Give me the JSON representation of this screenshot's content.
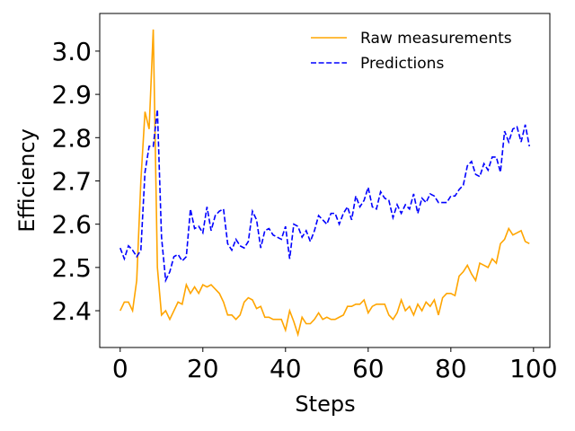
{
  "chart_data": {
    "type": "line",
    "xlabel": "Steps",
    "ylabel": "Efficiency",
    "x": [
      0,
      1,
      2,
      3,
      4,
      5,
      6,
      7,
      8,
      9,
      10,
      11,
      12,
      13,
      14,
      15,
      16,
      17,
      18,
      19,
      20,
      21,
      22,
      23,
      24,
      25,
      26,
      27,
      28,
      29,
      30,
      31,
      32,
      33,
      34,
      35,
      36,
      37,
      38,
      39,
      40,
      41,
      42,
      43,
      44,
      45,
      46,
      47,
      48,
      49,
      50,
      51,
      52,
      53,
      54,
      55,
      56,
      57,
      58,
      59,
      60,
      61,
      62,
      63,
      64,
      65,
      66,
      67,
      68,
      69,
      70,
      71,
      72,
      73,
      74,
      75,
      76,
      77,
      78,
      79,
      80,
      81,
      82,
      83,
      84,
      85,
      86,
      87,
      88,
      89,
      90,
      91,
      92,
      93,
      94,
      95,
      96,
      97,
      98,
      99
    ],
    "series": [
      {
        "name": "Raw measurements",
        "color": "orange",
        "dash": "solid",
        "values": [
          2.4,
          2.42,
          2.42,
          2.4,
          2.47,
          2.7,
          2.86,
          2.82,
          3.05,
          2.5,
          2.39,
          2.4,
          2.38,
          2.4,
          2.42,
          2.415,
          2.46,
          2.44,
          2.455,
          2.44,
          2.46,
          2.455,
          2.46,
          2.45,
          2.44,
          2.42,
          2.39,
          2.39,
          2.38,
          2.39,
          2.42,
          2.43,
          2.425,
          2.405,
          2.41,
          2.385,
          2.385,
          2.38,
          2.38,
          2.38,
          2.355,
          2.4,
          2.375,
          2.345,
          2.385,
          2.37,
          2.37,
          2.38,
          2.395,
          2.38,
          2.385,
          2.38,
          2.38,
          2.385,
          2.39,
          2.41,
          2.41,
          2.415,
          2.415,
          2.425,
          2.395,
          2.41,
          2.415,
          2.415,
          2.415,
          2.39,
          2.38,
          2.395,
          2.425,
          2.4,
          2.41,
          2.39,
          2.415,
          2.4,
          2.42,
          2.41,
          2.425,
          2.39,
          2.43,
          2.44,
          2.44,
          2.435,
          2.48,
          2.49,
          2.505,
          2.485,
          2.47,
          2.51,
          2.505,
          2.5,
          2.52,
          2.51,
          2.555,
          2.565,
          2.59,
          2.575,
          2.58,
          2.585,
          2.56,
          2.555
        ]
      },
      {
        "name": "Predictions",
        "color": "blue",
        "dash": "dashed",
        "values": [
          2.545,
          2.52,
          2.55,
          2.54,
          2.525,
          2.54,
          2.72,
          2.78,
          2.78,
          2.865,
          2.57,
          2.47,
          2.49,
          2.525,
          2.53,
          2.515,
          2.525,
          2.635,
          2.59,
          2.595,
          2.58,
          2.64,
          2.585,
          2.62,
          2.63,
          2.635,
          2.555,
          2.54,
          2.565,
          2.55,
          2.545,
          2.56,
          2.63,
          2.61,
          2.545,
          2.585,
          2.59,
          2.575,
          2.57,
          2.565,
          2.595,
          2.52,
          2.6,
          2.595,
          2.57,
          2.585,
          2.56,
          2.585,
          2.62,
          2.61,
          2.6,
          2.625,
          2.625,
          2.6,
          2.625,
          2.64,
          2.61,
          2.665,
          2.64,
          2.655,
          2.685,
          2.64,
          2.635,
          2.675,
          2.66,
          2.655,
          2.615,
          2.645,
          2.625,
          2.645,
          2.635,
          2.67,
          2.625,
          2.66,
          2.65,
          2.67,
          2.665,
          2.65,
          2.65,
          2.65,
          2.665,
          2.665,
          2.68,
          2.69,
          2.735,
          2.745,
          2.715,
          2.71,
          2.74,
          2.725,
          2.755,
          2.755,
          2.72,
          2.815,
          2.79,
          2.82,
          2.825,
          2.79,
          2.83,
          2.78
        ]
      }
    ],
    "xlim": [
      -4.95,
      103.95
    ],
    "ylim": [
      2.315,
      3.087
    ],
    "xticks": [
      0,
      20,
      40,
      60,
      80,
      100
    ],
    "yticks": [
      2.4,
      2.5,
      2.6,
      2.7,
      2.8,
      2.9,
      {
        "value": 3,
        "label": "3.0"
      }
    ],
    "grid": false,
    "legend": "upper right"
  }
}
